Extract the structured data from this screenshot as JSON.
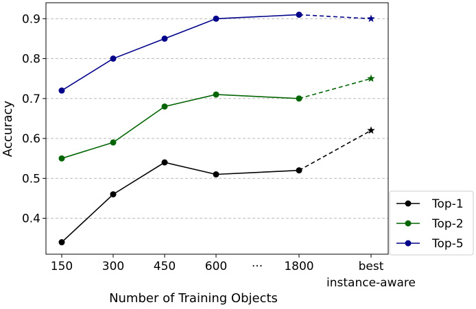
{
  "chart_data": {
    "type": "line",
    "title": "",
    "xlabel": "Number of Training Objects",
    "ylabel": "Accuracy",
    "ylim": [
      0.31,
      0.94
    ],
    "yticks": [
      0.4,
      0.5,
      0.6,
      0.7,
      0.8,
      0.9
    ],
    "categories": [
      "150",
      "300",
      "450",
      "600",
      "···",
      "1800",
      "best"
    ],
    "category_sublabels": [
      "",
      "",
      "",
      "",
      "",
      "",
      "instance-aware"
    ],
    "grid": "horizontal-dashed",
    "legend_position": "outside-bottom-right",
    "series": [
      {
        "name": "Top-1",
        "color": "#000000",
        "x": [
          "150",
          "300",
          "450",
          "600",
          "1800"
        ],
        "values": [
          0.34,
          0.46,
          0.54,
          0.51,
          0.52
        ],
        "best_value": 0.62
      },
      {
        "name": "Top-2",
        "color": "#006400",
        "x": [
          "150",
          "300",
          "450",
          "600",
          "1800"
        ],
        "values": [
          0.55,
          0.59,
          0.68,
          0.71,
          0.7
        ],
        "best_value": 0.75
      },
      {
        "name": "Top-5",
        "color": "#00008b",
        "x": [
          "150",
          "300",
          "450",
          "600",
          "1800"
        ],
        "values": [
          0.72,
          0.8,
          0.85,
          0.9,
          0.91
        ],
        "best_value": 0.9
      }
    ]
  }
}
